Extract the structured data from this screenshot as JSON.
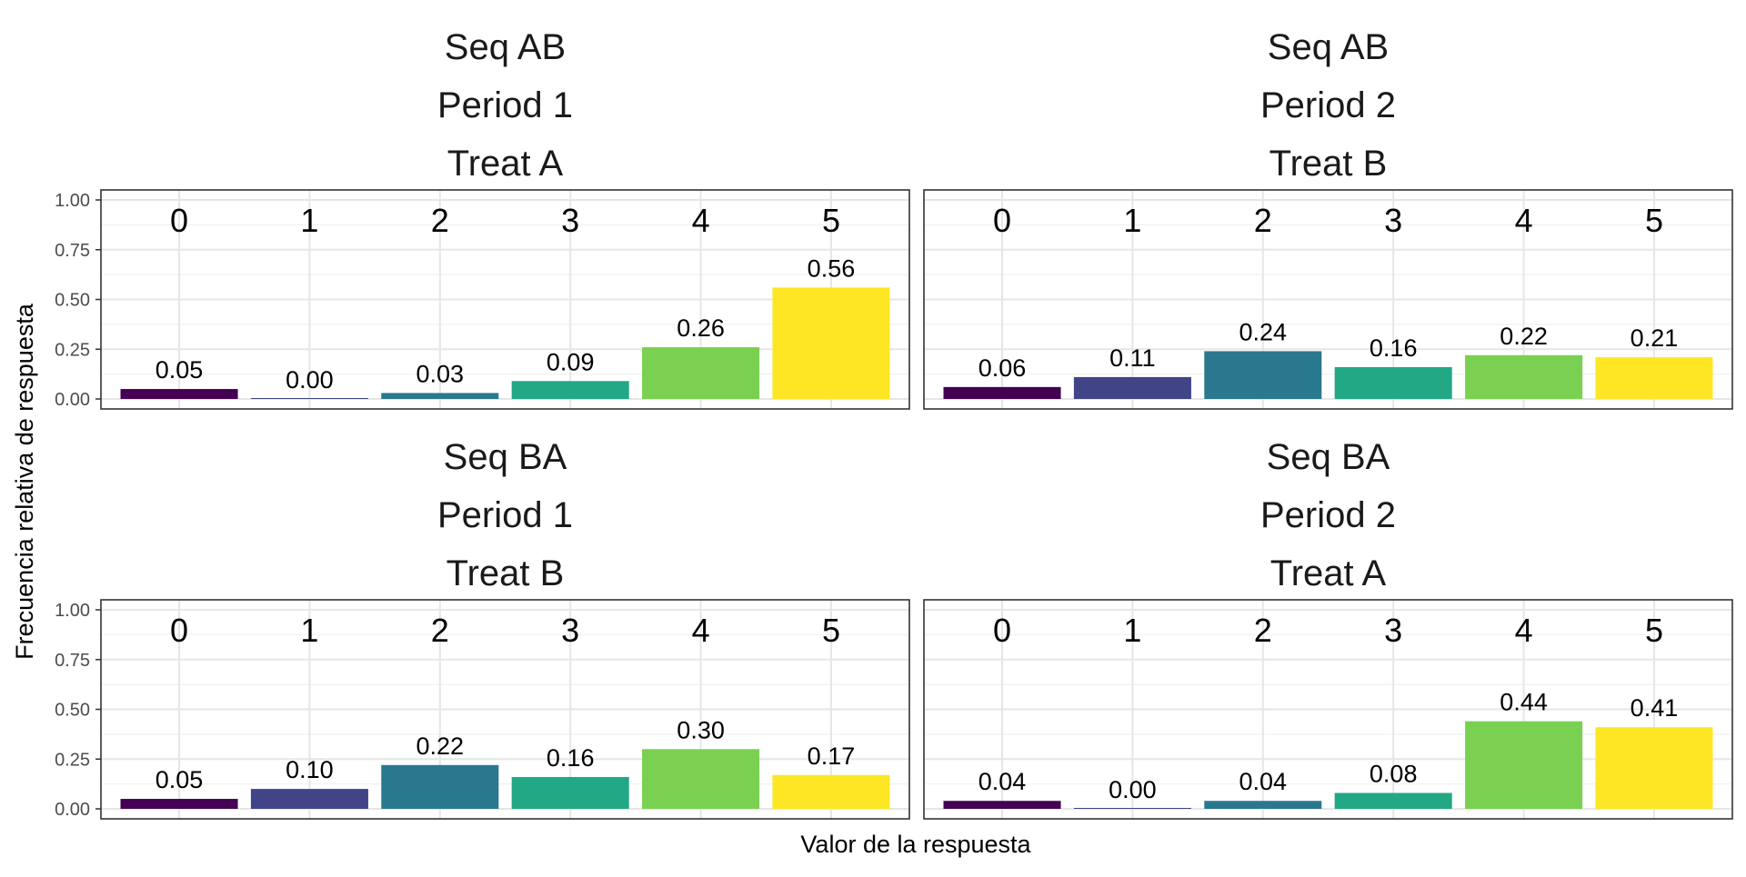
{
  "chart_data": {
    "type": "bar",
    "xlabel": "Valor de la respuesta",
    "ylabel": "Frecuencia relativa de respuesta",
    "categories": [
      "0",
      "1",
      "2",
      "3",
      "4",
      "5"
    ],
    "ylim": [
      0,
      1
    ],
    "yticks": [
      "0.00",
      "0.25",
      "0.50",
      "0.75",
      "1.00"
    ],
    "grid": true,
    "legend": "none",
    "colors": [
      "#440154",
      "#414487",
      "#2A788E",
      "#22A884",
      "#7AD151",
      "#FDE725"
    ],
    "panels": [
      {
        "strip": [
          "Seq AB",
          "Period 1",
          "Treat A"
        ],
        "values": [
          0.05,
          0.0,
          0.03,
          0.09,
          0.26,
          0.56
        ],
        "labels": [
          "0.05",
          "0.00",
          "0.03",
          "0.09",
          "0.26",
          "0.56"
        ]
      },
      {
        "strip": [
          "Seq AB",
          "Period 2",
          "Treat B"
        ],
        "values": [
          0.06,
          0.11,
          0.24,
          0.16,
          0.22,
          0.21
        ],
        "labels": [
          "0.06",
          "0.11",
          "0.24",
          "0.16",
          "0.22",
          "0.21"
        ]
      },
      {
        "strip": [
          "Seq BA",
          "Period 1",
          "Treat B"
        ],
        "values": [
          0.05,
          0.1,
          0.22,
          0.16,
          0.3,
          0.17
        ],
        "labels": [
          "0.05",
          "0.10",
          "0.22",
          "0.16",
          "0.30",
          "0.17"
        ]
      },
      {
        "strip": [
          "Seq BA",
          "Period 2",
          "Treat A"
        ],
        "values": [
          0.04,
          0.0,
          0.04,
          0.08,
          0.44,
          0.41
        ],
        "labels": [
          "0.04",
          "0.00",
          "0.04",
          "0.08",
          "0.44",
          "0.41"
        ]
      }
    ]
  }
}
